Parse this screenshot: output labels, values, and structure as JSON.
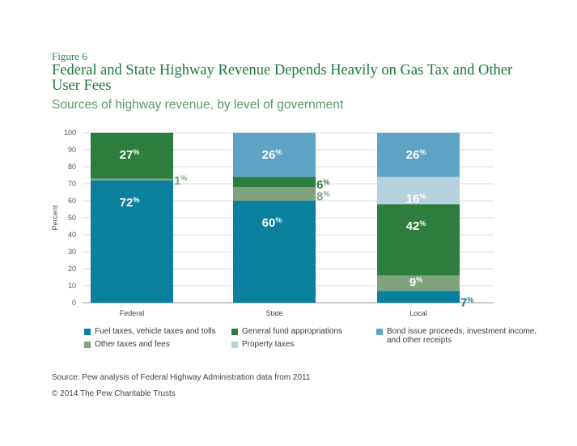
{
  "header": {
    "figure_label": "Figure 6",
    "title": "Federal and State Highway Revenue Depends Heavily on Gas Tax and Other User Fees",
    "subtitle": "Sources of highway revenue, by level of government"
  },
  "colors": {
    "fuel": "#0b7f9e",
    "general": "#2d7d3f",
    "bond": "#5fa4c6",
    "other": "#7ea37d",
    "property": "#b7d1df"
  },
  "chart_data": {
    "type": "bar",
    "stacked": true,
    "ylabel": "Percent",
    "ylim": [
      0,
      100
    ],
    "yticks": [
      0,
      10,
      20,
      30,
      40,
      50,
      60,
      70,
      80,
      90,
      100
    ],
    "categories": [
      "Federal",
      "State",
      "Local"
    ],
    "series": [
      {
        "name": "Fuel taxes, vehicle taxes and tolls",
        "key": "fuel",
        "values": [
          72,
          60,
          7
        ],
        "labels": [
          "72%",
          "60%",
          "7%"
        ]
      },
      {
        "name": "Other taxes and fees",
        "key": "other",
        "values": [
          1,
          8,
          9
        ],
        "labels": [
          "1%",
          "8%",
          "9%"
        ]
      },
      {
        "name": "General fund appropriations",
        "key": "general",
        "values": [
          27,
          6,
          42
        ],
        "labels": [
          "27%",
          "6%",
          "42%"
        ]
      },
      {
        "name": "Property taxes",
        "key": "property",
        "values": [
          0,
          0,
          16
        ],
        "labels": [
          "",
          "",
          "16%"
        ]
      },
      {
        "name": "Bond issue proceeds, investment income, and other receipts",
        "key": "bond",
        "values": [
          0,
          26,
          26
        ],
        "labels": [
          "",
          "26%",
          "26%"
        ]
      }
    ],
    "legend_placement": "bottom"
  },
  "legend": {
    "fuel": "Fuel taxes, vehicle taxes and tolls",
    "general": "General fund appropriations",
    "bond_line1": "Bond issue proceeds, investment income,",
    "bond_line2": "and other receipts",
    "other": "Other taxes and fees",
    "property": "Property taxes"
  },
  "footer": {
    "source": "Source: Pew analysis of Federal Highway Administration data from 2011",
    "copyright": "© 2014 The Pew Charitable Trusts"
  }
}
